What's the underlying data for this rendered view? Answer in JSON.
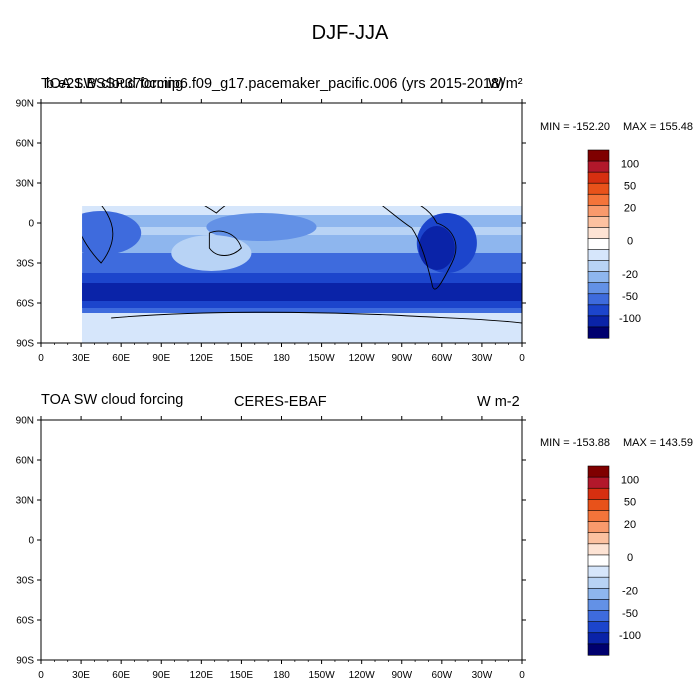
{
  "figure": {
    "title": "DJF-JJA"
  },
  "panels": [
    {
      "left_title": "TOA SW cloud forcing",
      "center_title": "b.e21.BSSP370cmip6.f09_g17.pacemaker_pacific.006 (yrs 2015-2018)",
      "right_title": "W/m²",
      "min_label": "MIN = -152.20",
      "max_label": "MAX = 155.48"
    },
    {
      "left_title": "TOA SW cloud forcing",
      "center_title": "CERES-EBAF",
      "right_title": "W m-2",
      "min_label": "MIN = -153.88",
      "max_label": "MAX = 143.59"
    }
  ],
  "axes": {
    "lon_labels": [
      "0",
      "30E",
      "60E",
      "90E",
      "120E",
      "150E",
      "180",
      "150W",
      "120W",
      "90W",
      "60W",
      "30W",
      "0"
    ],
    "lat_labels": [
      "90N",
      "60N",
      "30N",
      "0",
      "30S",
      "60S",
      "90S"
    ]
  },
  "colorbar": {
    "labels": [
      "100",
      "50",
      "20",
      "0",
      "-20",
      "-50",
      "-100"
    ],
    "colors": [
      "#7f0000",
      "#b2182b",
      "#d62f10",
      "#e8521a",
      "#f4743a",
      "#f99a6c",
      "#fcc1a0",
      "#fde3d4",
      "#ffffff",
      "#d6e6fb",
      "#b8d3f5",
      "#8eb6ee",
      "#6391e6",
      "#3e6bdd",
      "#1c45cc",
      "#0a23a8",
      "#00006e"
    ]
  }
}
